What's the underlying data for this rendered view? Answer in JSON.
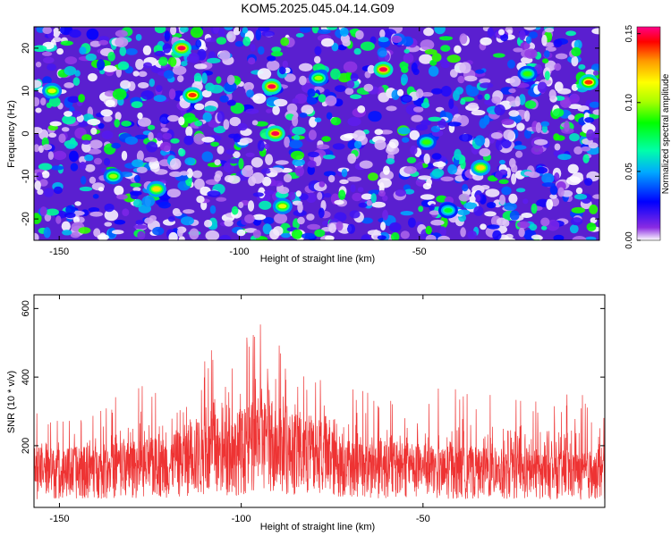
{
  "title": "KOM5.2025.045.04.14.G09",
  "chart_data": [
    {
      "type": "heatmap",
      "xlabel": "Height of straight line (km)",
      "ylabel": "Frequency (Hz)",
      "x_range": [
        -157,
        0
      ],
      "y_range": [
        -25,
        25
      ],
      "x_ticks": [
        -150,
        -100,
        -50
      ],
      "y_ticks": [
        -20,
        -10,
        0,
        10,
        20
      ],
      "colorbar": {
        "label": "Normalized spectral amplitude",
        "range": [
          0,
          0.155
        ],
        "ticks": [
          "0.00",
          "0.05",
          "0.10",
          "0.15"
        ],
        "tick_values": [
          0,
          0.05,
          0.1,
          0.15
        ],
        "colors": [
          "#ffffff",
          "#8a2be2",
          "#0000ff",
          "#00aaff",
          "#00ffaa",
          "#00ff00",
          "#aaff00",
          "#ffff00",
          "#ff9900",
          "#ff0000",
          "#ff0088"
        ]
      },
      "hotspots": [
        {
          "x": -116,
          "y": 20,
          "v": 0.15
        },
        {
          "x": -113,
          "y": 9,
          "v": 0.14
        },
        {
          "x": -91,
          "y": 11,
          "v": 0.15
        },
        {
          "x": -90,
          "y": 0,
          "v": 0.15
        },
        {
          "x": -60,
          "y": 15,
          "v": 0.15
        },
        {
          "x": -3,
          "y": 12,
          "v": 0.14
        },
        {
          "x": -152,
          "y": 10,
          "v": 0.11
        },
        {
          "x": -33,
          "y": -8,
          "v": 0.12
        },
        {
          "x": -123,
          "y": -13,
          "v": 0.12
        },
        {
          "x": -88,
          "y": -17,
          "v": 0.11
        },
        {
          "x": -135,
          "y": -10,
          "v": 0.1
        },
        {
          "x": -78,
          "y": 13,
          "v": 0.1
        },
        {
          "x": -48,
          "y": -2,
          "v": 0.09
        },
        {
          "x": -42,
          "y": -18,
          "v": 0.08
        },
        {
          "x": -20,
          "y": 14,
          "v": 0.09
        }
      ]
    },
    {
      "type": "line",
      "xlabel": "Height of straight line (km)",
      "ylabel": "SNR (10 * v/v)",
      "x_range": [
        -157,
        0
      ],
      "y_range": [
        20,
        640
      ],
      "x_ticks": [
        -150,
        -100,
        -50
      ],
      "y_ticks": [
        200,
        400,
        600
      ],
      "series": [
        {
          "color": "#ee3333",
          "envelope_x": [
            -157,
            -145,
            -130,
            -120,
            -112,
            -105,
            -98,
            -92,
            -88,
            -80,
            -72,
            -65,
            -55,
            -45,
            -35,
            -20,
            -10,
            0
          ],
          "envelope_peak": [
            300,
            280,
            380,
            370,
            540,
            460,
            520,
            640,
            470,
            420,
            380,
            360,
            330,
            370,
            380,
            340,
            360,
            330
          ],
          "envelope_mean": [
            120,
            120,
            130,
            140,
            170,
            165,
            190,
            210,
            180,
            160,
            140,
            135,
            125,
            120,
            120,
            115,
            115,
            110
          ]
        }
      ]
    }
  ]
}
